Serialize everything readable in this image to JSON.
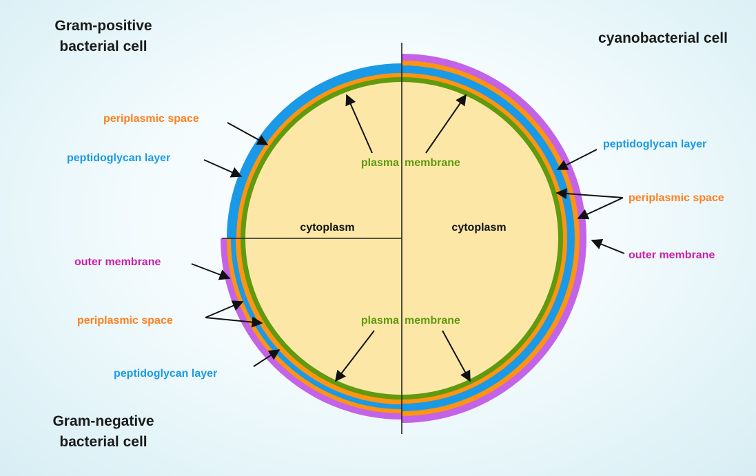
{
  "titles": {
    "gram_positive": [
      "Gram-positive",
      "bacterial cell"
    ],
    "cyanobacterial": "cyanobacterial cell",
    "gram_negative": [
      "Gram-negative",
      "bacterial cell"
    ]
  },
  "labels": {
    "gp_periplasmic": "periplasmic space",
    "gp_peptidoglycan": "peptidoglycan layer",
    "plasma_top_left": "plasma",
    "plasma_top_right": "membrane",
    "cytoplasm_left": "cytoplasm",
    "cytoplasm_right": "cytoplasm",
    "gn_outer": "outer membrane",
    "gn_periplasmic": "periplasmic space",
    "gn_peptidoglycan": "peptidoglycan layer",
    "plasma_bottom_left": "plasma",
    "plasma_bottom_right": "membrane",
    "cy_peptidoglycan": "peptidoglycan layer",
    "cy_periplasmic": "periplasmic space",
    "cy_outer": "outer membrane"
  },
  "colors": {
    "cytoplasm": "#fde7a6",
    "plasma_membrane": "#5f9a10",
    "periplasmic_space": "#ff9410",
    "peptidoglycan": "#1a9ae6",
    "outer_membrane": "#c363e8",
    "label_orange": "#ff7f1e",
    "label_blue": "#1a9ae6",
    "label_magenta": "#cc20a8",
    "label_green": "#5f9a10"
  }
}
